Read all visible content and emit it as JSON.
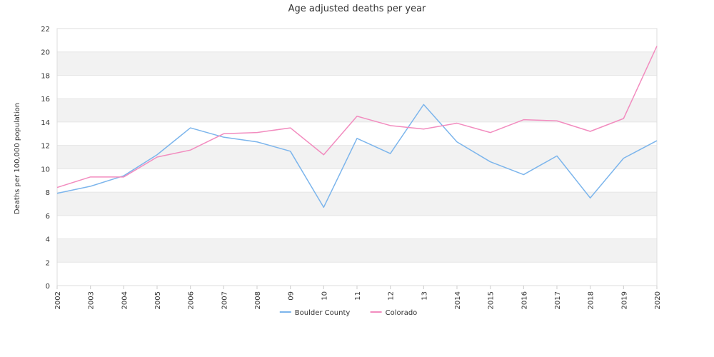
{
  "chart_data": {
    "type": "line",
    "title": "Age adjusted deaths per year",
    "xlabel": "",
    "ylabel": "Deaths per 100,000 population",
    "categories": [
      "2002",
      "2003",
      "2004",
      "2005",
      "2006",
      "2007",
      "2008",
      "09",
      "10",
      "11",
      "12",
      "13",
      "2014",
      "2015",
      "2016",
      "2017",
      "2018",
      "2019",
      "2020"
    ],
    "ylim": [
      0,
      22
    ],
    "yticks": [
      0,
      2,
      4,
      6,
      8,
      10,
      12,
      14,
      16,
      18,
      20,
      22
    ],
    "grid": "horizontal bands",
    "legend": "bottom-center",
    "series": [
      {
        "name": "Boulder County",
        "color": "#7cb5ec",
        "values": [
          7.9,
          8.5,
          9.4,
          11.2,
          13.5,
          12.7,
          12.3,
          11.5,
          6.7,
          12.6,
          11.3,
          15.5,
          12.3,
          10.6,
          9.5,
          11.1,
          7.5,
          10.9,
          12.4
        ]
      },
      {
        "name": "Colorado",
        "color": "#f28cbf",
        "values": [
          8.4,
          9.3,
          9.3,
          11.0,
          11.6,
          13.0,
          13.1,
          13.5,
          11.2,
          14.5,
          13.7,
          13.4,
          13.9,
          13.1,
          14.2,
          14.1,
          13.2,
          14.3,
          20.5
        ]
      }
    ]
  }
}
